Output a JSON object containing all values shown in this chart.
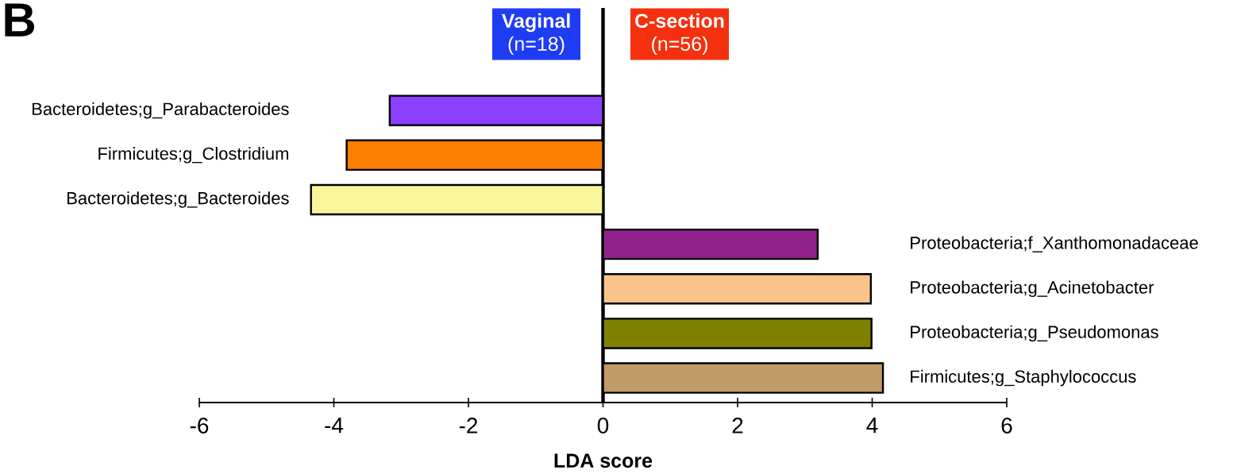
{
  "chart_data": {
    "type": "bar",
    "orientation": "horizontal",
    "xlabel": "LDA score",
    "categories": [
      "Bacteroidetes;g_Parabacteroides",
      "Firmicutes;g_Clostridium",
      "Bacteroidetes;g_Bacteroides",
      "Proteobacteria;f_Xanthomonadaceae",
      "Proteobacteria;g_Acinetobacter",
      "Proteobacteria;g_Pseudomonas",
      "Firmicutes;g_Staphylococcus"
    ],
    "values": [
      -3.17,
      -3.81,
      -4.34,
      3.19,
      3.98,
      3.99,
      4.16
    ],
    "colors": [
      "#8b40ff",
      "#ff7f00",
      "#faf49a",
      "#8f2389",
      "#f9c38a",
      "#7f7f00",
      "#c09a67"
    ],
    "xlim": [
      -6,
      6
    ],
    "xticks": [
      -6,
      -4,
      -2,
      0,
      2,
      4,
      6
    ],
    "annotations": [
      "B",
      "Vaginal",
      "(n=18)",
      "C-section",
      "(n=56)"
    ]
  }
}
